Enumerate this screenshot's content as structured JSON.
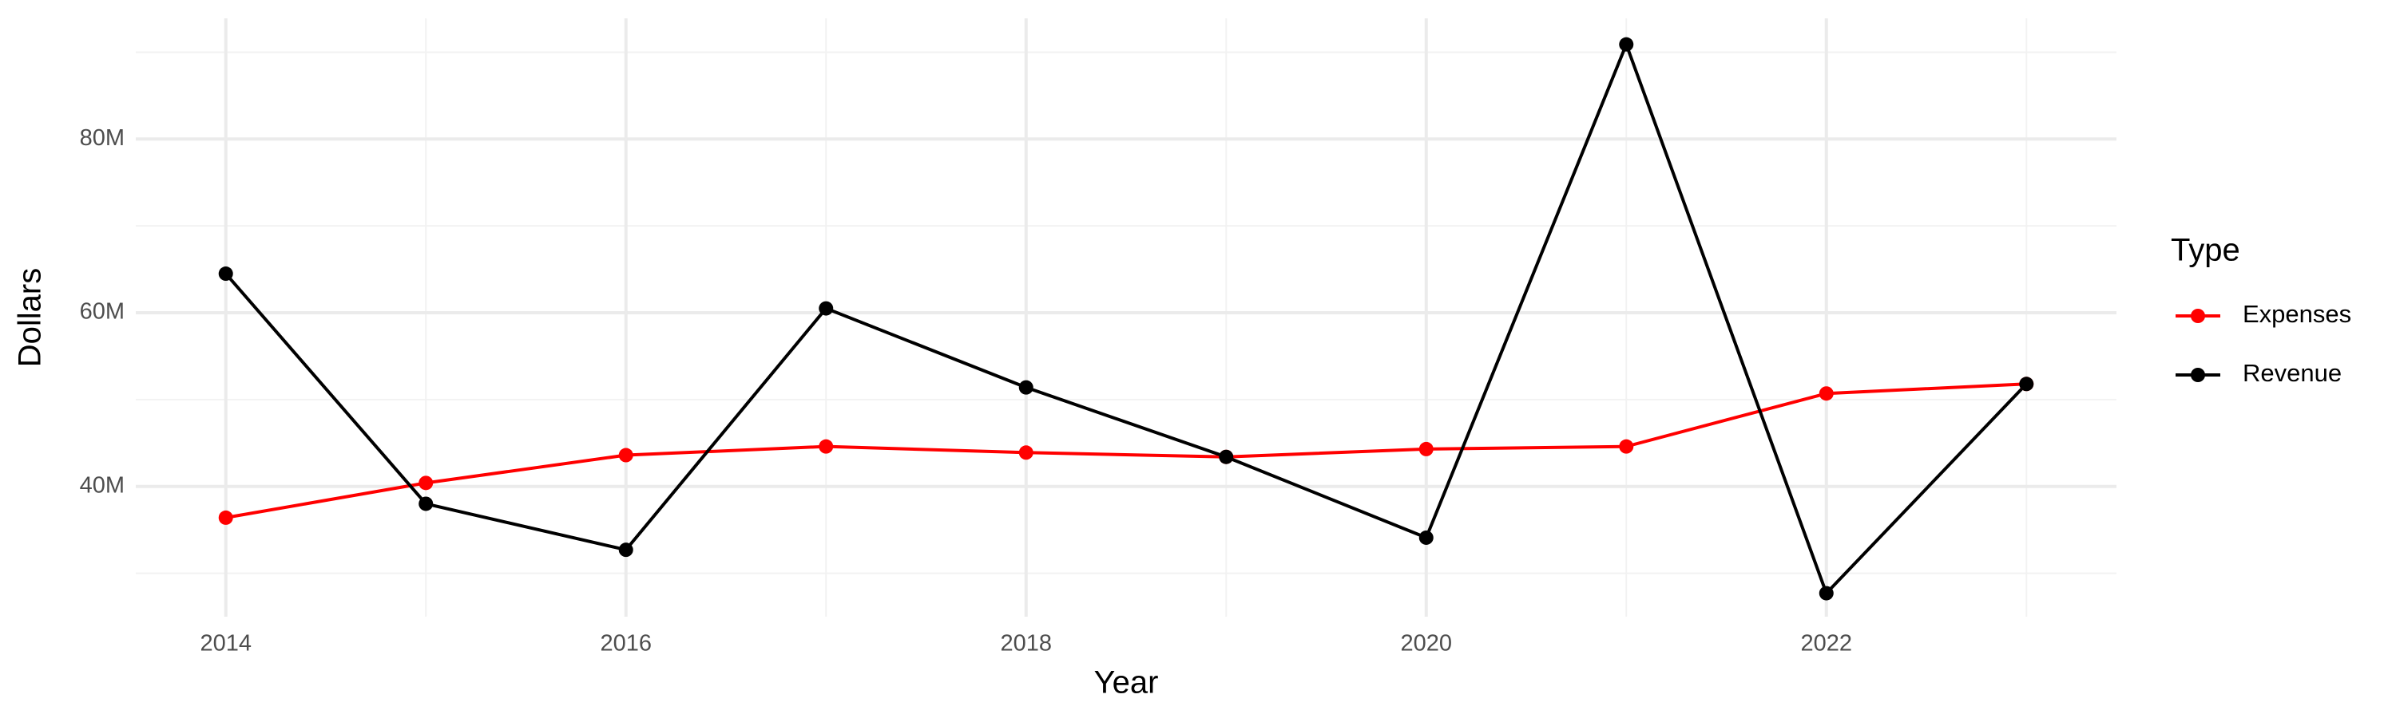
{
  "chart_data": {
    "type": "line",
    "x_label": "Year",
    "y_label": "Dollars",
    "legend_title": "Type",
    "x": [
      2014,
      2015,
      2016,
      2017,
      2018,
      2019,
      2020,
      2021,
      2022,
      2023
    ],
    "series": [
      {
        "name": "Expenses",
        "color": "#ff0000",
        "values": [
          36400000,
          40400000,
          43600000,
          44600000,
          43900000,
          43400000,
          44300000,
          44600000,
          50700000,
          51800000
        ]
      },
      {
        "name": "Revenue",
        "color": "#000000",
        "values": [
          64500000,
          38000000,
          32700000,
          60500000,
          51400000,
          43400000,
          34100000,
          90900000,
          27700000,
          51800000
        ]
      }
    ],
    "xlim": [
      2013.55,
      2023.45
    ],
    "xticks": [
      2014,
      2016,
      2018,
      2020,
      2022
    ],
    "ylim": [
      25000000,
      93900000
    ],
    "yticks": [
      {
        "value": 40000000,
        "label": "40M"
      },
      {
        "value": 60000000,
        "label": "60M"
      },
      {
        "value": 80000000,
        "label": "80M"
      }
    ],
    "grid": true,
    "legend": "right"
  }
}
